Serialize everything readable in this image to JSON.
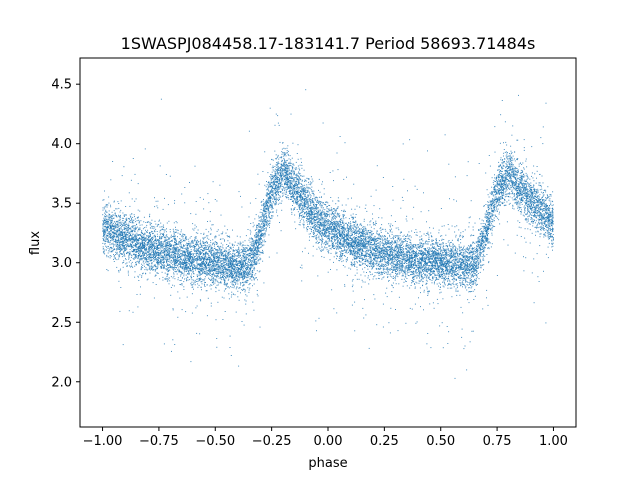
{
  "chart_data": {
    "type": "scatter",
    "title": "1SWASPJ084458.17-183141.7 Period 58693.71484s",
    "xlabel": "phase",
    "ylabel": "flux",
    "xlim": [
      -1.1,
      1.1
    ],
    "ylim": [
      1.62,
      4.72
    ],
    "x_ticks": [
      -1.0,
      -0.75,
      -0.5,
      -0.25,
      0.0,
      0.25,
      0.5,
      0.75,
      1.0
    ],
    "x_tick_labels": [
      "−1.00",
      "−0.75",
      "−0.50",
      "−0.25",
      "0.00",
      "0.25",
      "0.50",
      "0.75",
      "1.00"
    ],
    "y_ticks": [
      2.0,
      2.5,
      3.0,
      3.5,
      4.0,
      4.5
    ],
    "y_tick_labels": [
      "2.0",
      "2.5",
      "3.0",
      "3.5",
      "4.0",
      "4.5"
    ],
    "grid": false,
    "marker_color": "#1f77b4",
    "phase_range": [
      -1.0,
      1.0
    ],
    "profile": {
      "phase": [
        -1.0,
        -0.9,
        -0.8,
        -0.7,
        -0.6,
        -0.5,
        -0.4,
        -0.35,
        -0.3,
        -0.25,
        -0.2,
        -0.15,
        -0.1,
        -0.05,
        0.0,
        0.1,
        0.2,
        0.3,
        0.4,
        0.5,
        0.6,
        0.65,
        0.7,
        0.75,
        0.8,
        0.85,
        0.9,
        0.95,
        1.0
      ],
      "flux": [
        3.3,
        3.2,
        3.12,
        3.07,
        3.03,
        3.0,
        2.96,
        2.97,
        3.25,
        3.6,
        3.76,
        3.65,
        3.5,
        3.38,
        3.3,
        3.18,
        3.1,
        3.05,
        3.02,
        3.0,
        2.98,
        2.97,
        3.25,
        3.6,
        3.76,
        3.65,
        3.5,
        3.42,
        3.33
      ]
    }
  }
}
